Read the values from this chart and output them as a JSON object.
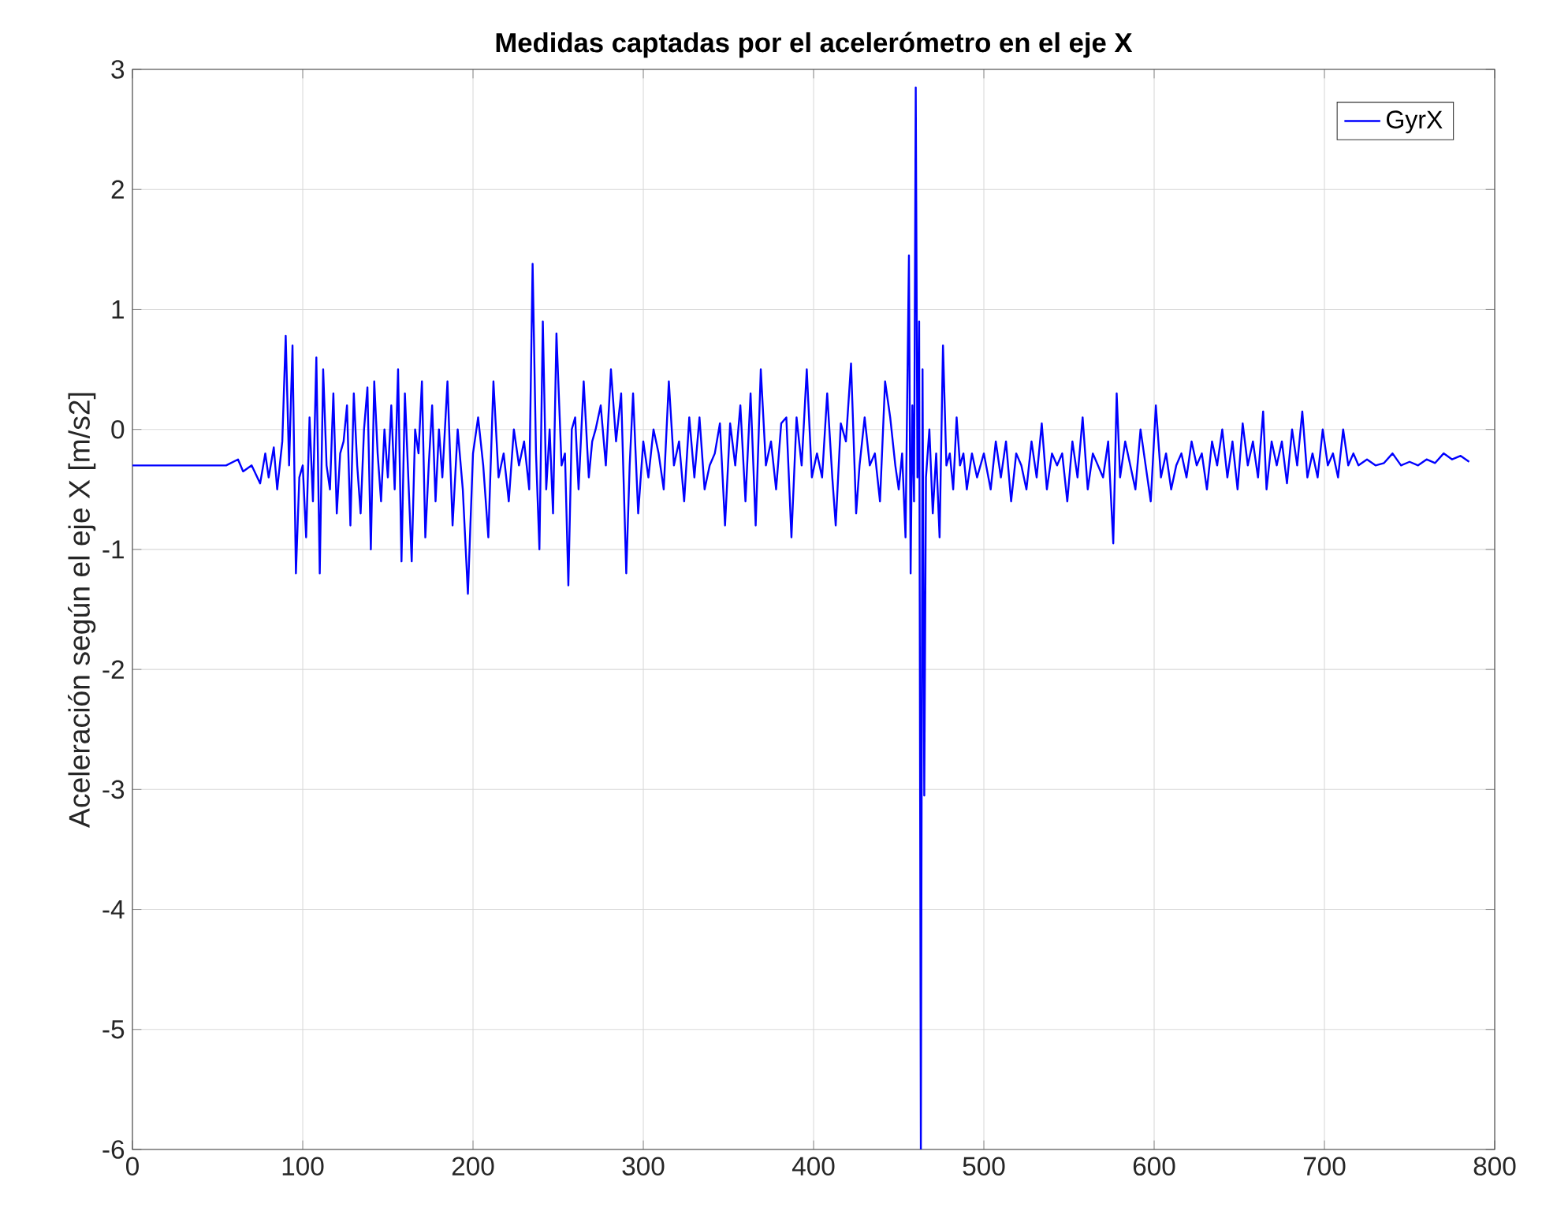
{
  "chart_data": {
    "type": "line",
    "title": "Medidas captadas por el acelerómetro en el eje X",
    "ylabel": "Aceleración según el eje X [m/s2]",
    "xlim": [
      0,
      800
    ],
    "ylim": [
      -6,
      3
    ],
    "xticks": [
      0,
      100,
      200,
      300,
      400,
      500,
      600,
      700,
      800
    ],
    "yticks": [
      -6,
      -5,
      -4,
      -3,
      -2,
      -1,
      0,
      1,
      2,
      3
    ],
    "grid": true,
    "legend": "top right",
    "series": [
      {
        "name": "GyrX",
        "color": "#0000ff",
        "x": [
          0,
          20,
          40,
          55,
          62,
          65,
          70,
          75,
          78,
          80,
          83,
          85,
          88,
          90,
          92,
          94,
          96,
          98,
          100,
          102,
          104,
          106,
          108,
          110,
          112,
          114,
          116,
          118,
          120,
          122,
          124,
          126,
          128,
          130,
          132,
          134,
          136,
          138,
          140,
          142,
          144,
          146,
          148,
          150,
          152,
          154,
          156,
          158,
          160,
          162,
          164,
          166,
          168,
          170,
          172,
          174,
          176,
          178,
          180,
          182,
          185,
          188,
          191,
          194,
          197,
          200,
          203,
          206,
          209,
          212,
          215,
          218,
          221,
          224,
          227,
          230,
          233,
          235,
          237,
          239,
          241,
          243,
          245,
          247,
          249,
          252,
          254,
          256,
          258,
          260,
          262,
          265,
          268,
          270,
          272,
          275,
          278,
          281,
          284,
          287,
          290,
          292,
          294,
          297,
          300,
          303,
          306,
          309,
          312,
          315,
          318,
          321,
          324,
          327,
          330,
          333,
          336,
          339,
          342,
          345,
          348,
          351,
          354,
          357,
          360,
          363,
          366,
          369,
          372,
          375,
          378,
          381,
          384,
          387,
          390,
          393,
          396,
          399,
          402,
          405,
          408,
          411,
          413,
          416,
          419,
          422,
          425,
          427,
          430,
          433,
          436,
          439,
          442,
          445,
          448,
          450,
          452,
          454,
          456,
          457,
          458,
          459,
          460,
          461,
          462,
          463,
          464,
          465,
          466,
          468,
          470,
          472,
          474,
          476,
          478,
          480,
          482,
          484,
          486,
          488,
          490,
          493,
          496,
          500,
          504,
          507,
          510,
          513,
          516,
          519,
          522,
          525,
          528,
          531,
          534,
          537,
          540,
          543,
          546,
          549,
          552,
          555,
          558,
          561,
          564,
          567,
          570,
          573,
          576,
          578,
          580,
          583,
          586,
          589,
          592,
          595,
          598,
          601,
          604,
          607,
          610,
          613,
          616,
          619,
          622,
          625,
          628,
          631,
          634,
          637,
          640,
          643,
          646,
          649,
          652,
          655,
          658,
          661,
          664,
          666,
          669,
          672,
          675,
          678,
          681,
          684,
          687,
          690,
          693,
          696,
          699,
          702,
          705,
          708,
          711,
          714,
          717,
          720,
          725,
          730,
          735,
          740,
          745,
          750,
          755,
          760,
          765,
          770,
          775,
          780,
          785
        ],
        "values": [
          -0.3,
          -0.3,
          -0.3,
          -0.3,
          -0.25,
          -0.35,
          -0.3,
          -0.45,
          -0.2,
          -0.4,
          -0.15,
          -0.5,
          -0.1,
          0.78,
          -0.3,
          0.7,
          -1.2,
          -0.4,
          -0.3,
          -0.9,
          0.1,
          -0.6,
          0.6,
          -1.2,
          0.5,
          -0.3,
          -0.5,
          0.3,
          -0.7,
          -0.2,
          -0.1,
          0.2,
          -0.8,
          0.3,
          -0.3,
          -0.7,
          0.0,
          0.35,
          -1.0,
          0.4,
          -0.2,
          -0.6,
          0.0,
          -0.4,
          0.2,
          -0.5,
          0.5,
          -1.1,
          0.3,
          -0.4,
          -1.1,
          0.0,
          -0.2,
          0.4,
          -0.9,
          -0.3,
          0.2,
          -0.6,
          0.0,
          -0.4,
          0.4,
          -0.8,
          0.0,
          -0.5,
          -1.37,
          -0.2,
          0.1,
          -0.3,
          -0.9,
          0.4,
          -0.4,
          -0.2,
          -0.6,
          0.0,
          -0.3,
          -0.1,
          -0.5,
          1.38,
          -0.2,
          -1.0,
          0.9,
          -0.5,
          0.0,
          -0.7,
          0.8,
          -0.3,
          -0.2,
          -1.3,
          0.0,
          0.1,
          -0.5,
          0.4,
          -0.4,
          -0.1,
          0.0,
          0.2,
          -0.3,
          0.5,
          -0.1,
          0.3,
          -1.2,
          -0.3,
          0.3,
          -0.7,
          -0.1,
          -0.4,
          0.0,
          -0.2,
          -0.5,
          0.4,
          -0.3,
          -0.1,
          -0.6,
          0.1,
          -0.4,
          0.1,
          -0.5,
          -0.3,
          -0.2,
          0.05,
          -0.8,
          0.05,
          -0.3,
          0.2,
          -0.6,
          0.3,
          -0.8,
          0.5,
          -0.3,
          -0.1,
          -0.5,
          0.05,
          0.1,
          -0.9,
          0.1,
          -0.3,
          0.5,
          -0.4,
          -0.2,
          -0.4,
          0.3,
          -0.4,
          -0.8,
          0.05,
          -0.1,
          0.55,
          -0.7,
          -0.3,
          0.1,
          -0.3,
          -0.2,
          -0.6,
          0.4,
          0.1,
          -0.3,
          -0.5,
          -0.2,
          -0.9,
          1.45,
          -1.2,
          0.2,
          -0.6,
          2.85,
          -0.4,
          0.9,
          -6,
          0.5,
          -3.05,
          -0.4,
          0.0,
          -0.7,
          -0.2,
          -0.9,
          0.7,
          -0.3,
          -0.2,
          -0.5,
          0.1,
          -0.3,
          -0.2,
          -0.5,
          -0.2,
          -0.4,
          -0.2,
          -0.5,
          -0.1,
          -0.4,
          -0.1,
          -0.6,
          -0.2,
          -0.3,
          -0.5,
          -0.1,
          -0.4,
          0.05,
          -0.5,
          -0.2,
          -0.3,
          -0.2,
          -0.6,
          -0.1,
          -0.4,
          0.1,
          -0.5,
          -0.2,
          -0.3,
          -0.4,
          -0.1,
          -0.95,
          0.3,
          -0.4,
          -0.1,
          -0.3,
          -0.5,
          0.0,
          -0.3,
          -0.6,
          0.2,
          -0.4,
          -0.2,
          -0.5,
          -0.3,
          -0.2,
          -0.4,
          -0.1,
          -0.3,
          -0.2,
          -0.5,
          -0.1,
          -0.3,
          0.0,
          -0.4,
          -0.1,
          -0.5,
          0.05,
          -0.3,
          -0.1,
          -0.4,
          0.15,
          -0.5,
          -0.1,
          -0.3,
          -0.1,
          -0.45,
          0.0,
          -0.3,
          0.15,
          -0.4,
          -0.2,
          -0.4,
          0.0,
          -0.3,
          -0.2,
          -0.4,
          0.0,
          -0.3,
          -0.2,
          -0.3,
          -0.25,
          -0.3,
          -0.28,
          -0.2,
          -0.3,
          -0.27,
          -0.3,
          -0.25,
          -0.28,
          -0.2,
          -0.25,
          -0.22,
          -0.27
        ]
      }
    ]
  }
}
